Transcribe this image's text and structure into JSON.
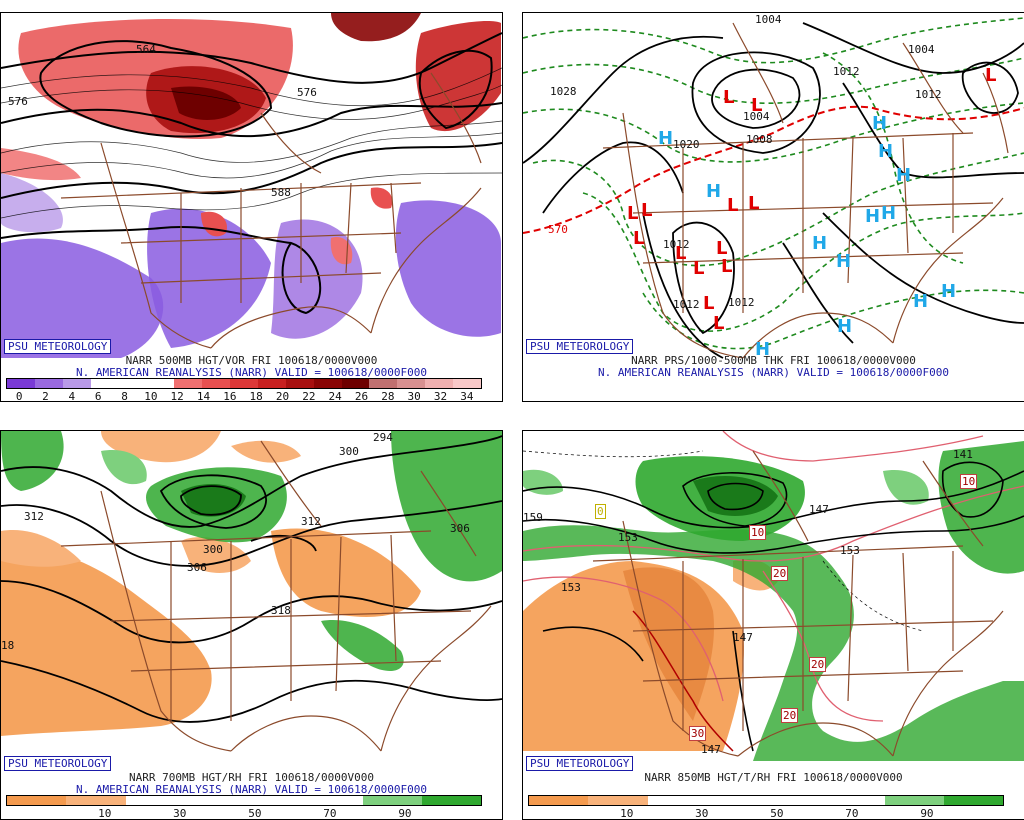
{
  "panels": {
    "tl": {
      "brand": "PSU METEOROLOGY",
      "caption1": "NARR 500MB HGT/VOR FRI 100618/0000V000",
      "caption2": "N. AMERICAN REANALYSIS (NARR) VALID = 100618/0000F000",
      "contour_labels": [
        "576",
        "564",
        "576",
        "588"
      ],
      "colorbar_ticks": [
        "0",
        "2",
        "4",
        "6",
        "8",
        "10",
        "12",
        "14",
        "16",
        "18",
        "20",
        "22",
        "24",
        "26",
        "28",
        "30",
        "32",
        "34"
      ],
      "colorbar_colors": [
        "#7a3ad6",
        "#9a6ae0",
        "#b99ae8",
        "#ffffff",
        "#ffffff",
        "#ffffff",
        "#f07070",
        "#e85050",
        "#dd3838",
        "#c82020",
        "#a81010",
        "#8a0505",
        "#6e0000",
        "#c07070",
        "#d89090",
        "#f0b0b0",
        "#f8c8c8"
      ]
    },
    "tr": {
      "brand": "PSU METEOROLOGY",
      "caption1": "NARR PRS/1000-500MB THK FRI 100618/0000V000",
      "caption2": "N. AMERICAN REANALYSIS (NARR) VALID = 100618/0000F000",
      "contour_labels": [
        "1028",
        "1004",
        "1004",
        "1012",
        "1012",
        "1012",
        "1012",
        "1008",
        "1004",
        "1020",
        "570",
        "1012"
      ],
      "high_symbol": "H",
      "low_symbol": "L"
    },
    "bl": {
      "brand": "PSU METEOROLOGY",
      "caption1": "NARR 700MB HGT/RH FRI 100618/0000V000",
      "caption2": "N. AMERICAN REANALYSIS (NARR) VALID = 100618/0000F000",
      "contour_labels": [
        "312",
        "300",
        "294",
        "306",
        "306",
        "300",
        "312",
        "318",
        "18"
      ],
      "colorbar_ticks": [
        "10",
        "30",
        "50",
        "70",
        "90"
      ],
      "colorbar_colors": [
        "#f49a4e",
        "#f8b27a",
        "#ffffff",
        "#ffffff",
        "#ffffff",
        "#ffffff",
        "#7ed07e",
        "#2fa82f"
      ]
    },
    "br": {
      "brand": "PSU METEOROLOGY",
      "caption1": "NARR 850MB HGT/T/RH FRI 100618/0000V000",
      "contour_labels": [
        "159",
        "153",
        "153",
        "147",
        "147",
        "153",
        "141",
        "0",
        "10",
        "20",
        "20",
        "20",
        "30",
        "10",
        "147"
      ],
      "colorbar_ticks": [
        "10",
        "30",
        "50",
        "70",
        "90"
      ],
      "colorbar_colors": [
        "#f49a4e",
        "#f8b27a",
        "#ffffff",
        "#ffffff",
        "#ffffff",
        "#ffffff",
        "#7ed07e",
        "#2fa82f"
      ]
    }
  },
  "colors": {
    "border": "#8b4a2b",
    "vor_pos": "#d23c3c",
    "vor_neg": "#8a5ce0",
    "thk_green": "#1e8a1e",
    "thk_red": "#e00000",
    "high": "#20a8e8",
    "low": "#e00000",
    "rh_moist": "#2fa82f",
    "rh_dry": "#f49a4e"
  }
}
